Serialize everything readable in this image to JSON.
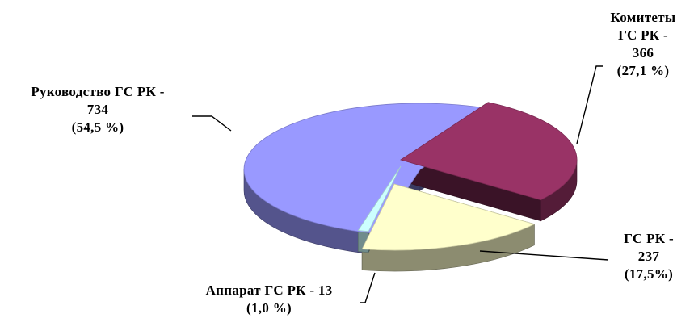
{
  "chart_data": {
    "type": "pie",
    "variant": "3d-exploded",
    "title": "",
    "categories": [
      "Руководство ГС РК",
      "Комитеты ГС РК",
      "ГС РК",
      "Аппарат ГС РК"
    ],
    "values": [
      734,
      366,
      237,
      13
    ],
    "percents": [
      "54,5 %",
      "27,1 %",
      "17,5%",
      "1,0 %"
    ],
    "colors": [
      "#9999ff",
      "#993366",
      "#ffffcc",
      "#ccffff"
    ],
    "legend": "none",
    "labels": [
      {
        "lines": [
          "Руководство ГС РК -",
          "734",
          "(54,5 %)"
        ]
      },
      {
        "lines": [
          "Комитеты",
          "ГС РК -",
          "366",
          "(27,1 %)"
        ]
      },
      {
        "lines": [
          "ГС РК -",
          "237",
          "(17,5%)"
        ]
      },
      {
        "lines": [
          "Аппарат ГС РК - 13",
          "(1,0 %)"
        ]
      }
    ]
  }
}
